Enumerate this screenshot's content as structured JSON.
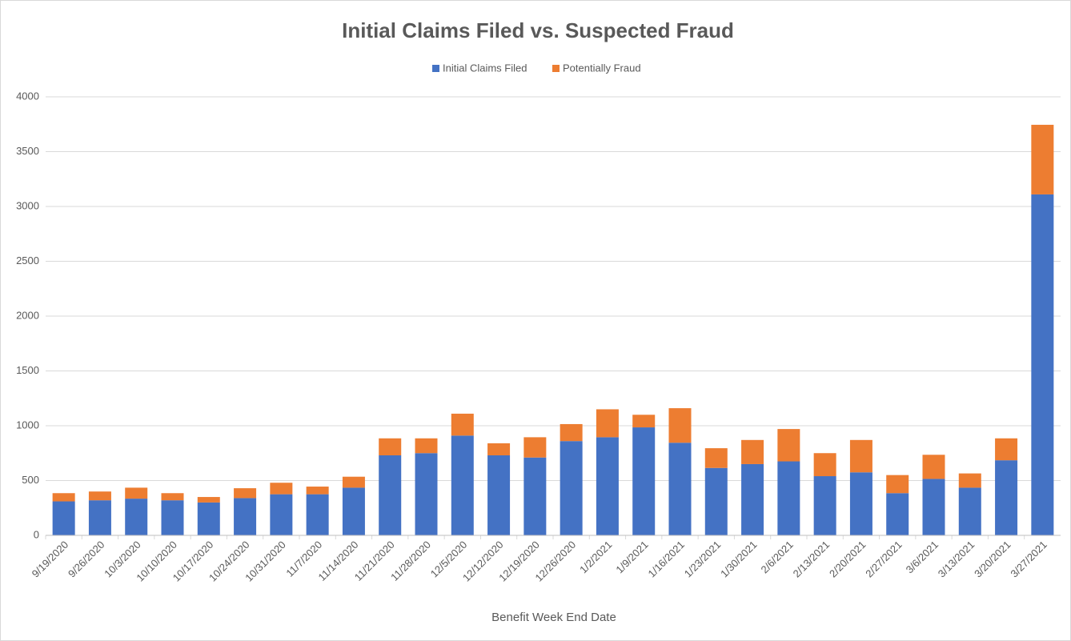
{
  "chart_data": {
    "type": "stacked_bar",
    "title": "Initial Claims Filed vs. Suspected Fraud",
    "x_label": "Benefit Week End Date",
    "categories": [
      "9/19/2020",
      "9/26/2020",
      "10/3/2020",
      "10/10/2020",
      "10/17/2020",
      "10/24/2020",
      "10/31/2020",
      "11/7/2020",
      "11/14/2020",
      "11/21/2020",
      "11/28/2020",
      "12/5/2020",
      "12/12/2020",
      "12/19/2020",
      "12/26/2020",
      "1/2/2021",
      "1/9/2021",
      "1/16/2021",
      "1/23/2021",
      "1/30/2021",
      "2/6/2021",
      "2/13/2021",
      "2/20/2021",
      "2/27/2021",
      "3/6/2021",
      "3/13/2021",
      "3/20/2021",
      "3/27/2021"
    ],
    "series": [
      {
        "name": "Initial Claims Filed",
        "color": "#4472c4",
        "values": [
          310,
          320,
          335,
          320,
          300,
          340,
          375,
          375,
          435,
          730,
          750,
          910,
          730,
          710,
          860,
          895,
          985,
          845,
          615,
          650,
          675,
          540,
          575,
          385,
          515,
          435,
          685,
          3110
        ]
      },
      {
        "name": "Potentially Fraud",
        "color": "#ed7d31",
        "values": [
          75,
          80,
          100,
          65,
          50,
          90,
          105,
          70,
          100,
          155,
          135,
          200,
          110,
          185,
          155,
          255,
          115,
          315,
          180,
          220,
          295,
          210,
          295,
          165,
          220,
          130,
          200,
          635
        ]
      }
    ],
    "ylim": [
      0,
      4000
    ],
    "yticks": [
      0,
      500,
      1000,
      1500,
      2000,
      2500,
      3000,
      3500,
      4000
    ],
    "grid": true,
    "legend": "top"
  }
}
